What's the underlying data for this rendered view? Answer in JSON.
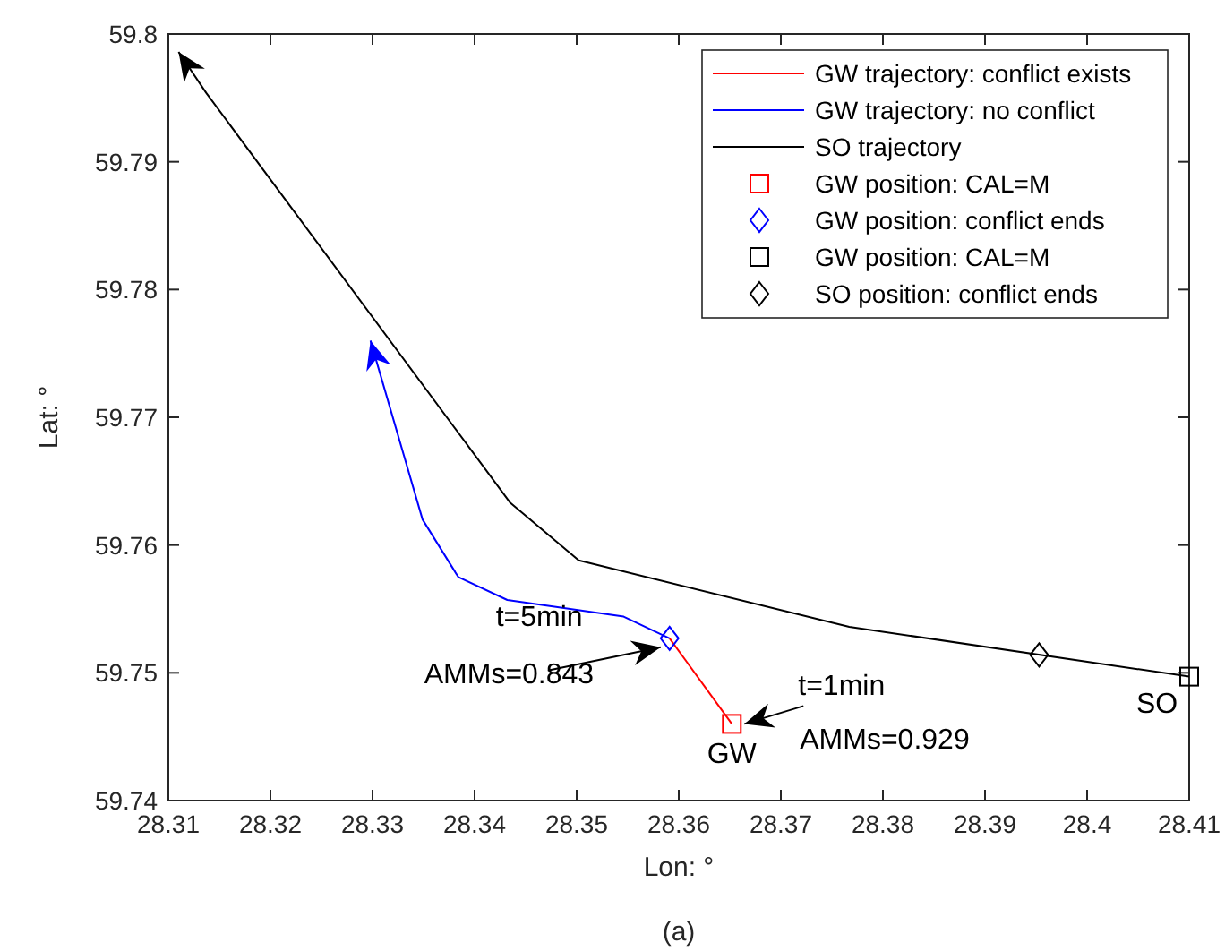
{
  "chart_data": {
    "type": "line",
    "title": "(a)",
    "xlabel": "Lon: °",
    "ylabel": "Lat: °",
    "xlim": [
      28.31,
      28.41
    ],
    "xticks": [
      28.31,
      28.32,
      28.33,
      28.34,
      28.35,
      28.36,
      28.37,
      28.38,
      28.39,
      28.4,
      28.41
    ],
    "ylim": [
      59.74,
      59.8
    ],
    "yticks": [
      59.74,
      59.75,
      59.76,
      59.77,
      59.78,
      59.79,
      59.8
    ],
    "grid": false,
    "legend": "top right",
    "series": [
      {
        "name": "GW trajectory: conflict exists",
        "color": "#ff0000",
        "marker": "none",
        "x": [
          28.3652,
          28.3591
        ],
        "values": [
          59.746,
          59.7527
        ]
      },
      {
        "name": "GW trajectory: no conflict",
        "color": "#0000ff",
        "marker": "none",
        "x": [
          28.3591,
          28.3546,
          28.3432,
          28.3384,
          28.3349,
          28.3298
        ],
        "values": [
          59.7527,
          59.7544,
          59.7557,
          59.7575,
          59.762,
          59.776
        ]
      },
      {
        "name": "SO trajectory",
        "color": "#000000",
        "marker": "none",
        "x": [
          28.41,
          28.3767,
          28.3502,
          28.3435,
          28.3137,
          28.311
        ],
        "values": [
          59.7497,
          59.7536,
          59.7588,
          59.7633,
          59.7954,
          59.7986
        ]
      },
      {
        "name": "GW position: CAL=M",
        "type": "scatter",
        "color": "#ff0000",
        "marker": "square",
        "x": [
          28.3652
        ],
        "values": [
          59.746
        ]
      },
      {
        "name": "GW position: conflict ends",
        "type": "scatter",
        "color": "#0000ff",
        "marker": "diamond",
        "x": [
          28.3591
        ],
        "values": [
          59.7527
        ]
      },
      {
        "name": "GW position: CAL=M",
        "type": "scatter",
        "color": "#000000",
        "marker": "square",
        "x": [
          28.41
        ],
        "values": [
          59.7497
        ]
      },
      {
        "name": "SO position: conflict ends",
        "type": "scatter",
        "color": "#000000",
        "marker": "diamond",
        "x": [
          28.3953
        ],
        "values": [
          59.7514
        ]
      }
    ],
    "annotations": [
      {
        "text": "t=5min\nAMMs=0.843",
        "x": 28.3591,
        "y": 59.7527
      },
      {
        "text": "t=1min\nAMMs=0.929",
        "x": 28.3652,
        "y": 59.746
      },
      {
        "text": "GW",
        "x": 28.3652,
        "y": 59.746
      },
      {
        "text": "SO",
        "x": 28.41,
        "y": 59.7497
      }
    ]
  }
}
